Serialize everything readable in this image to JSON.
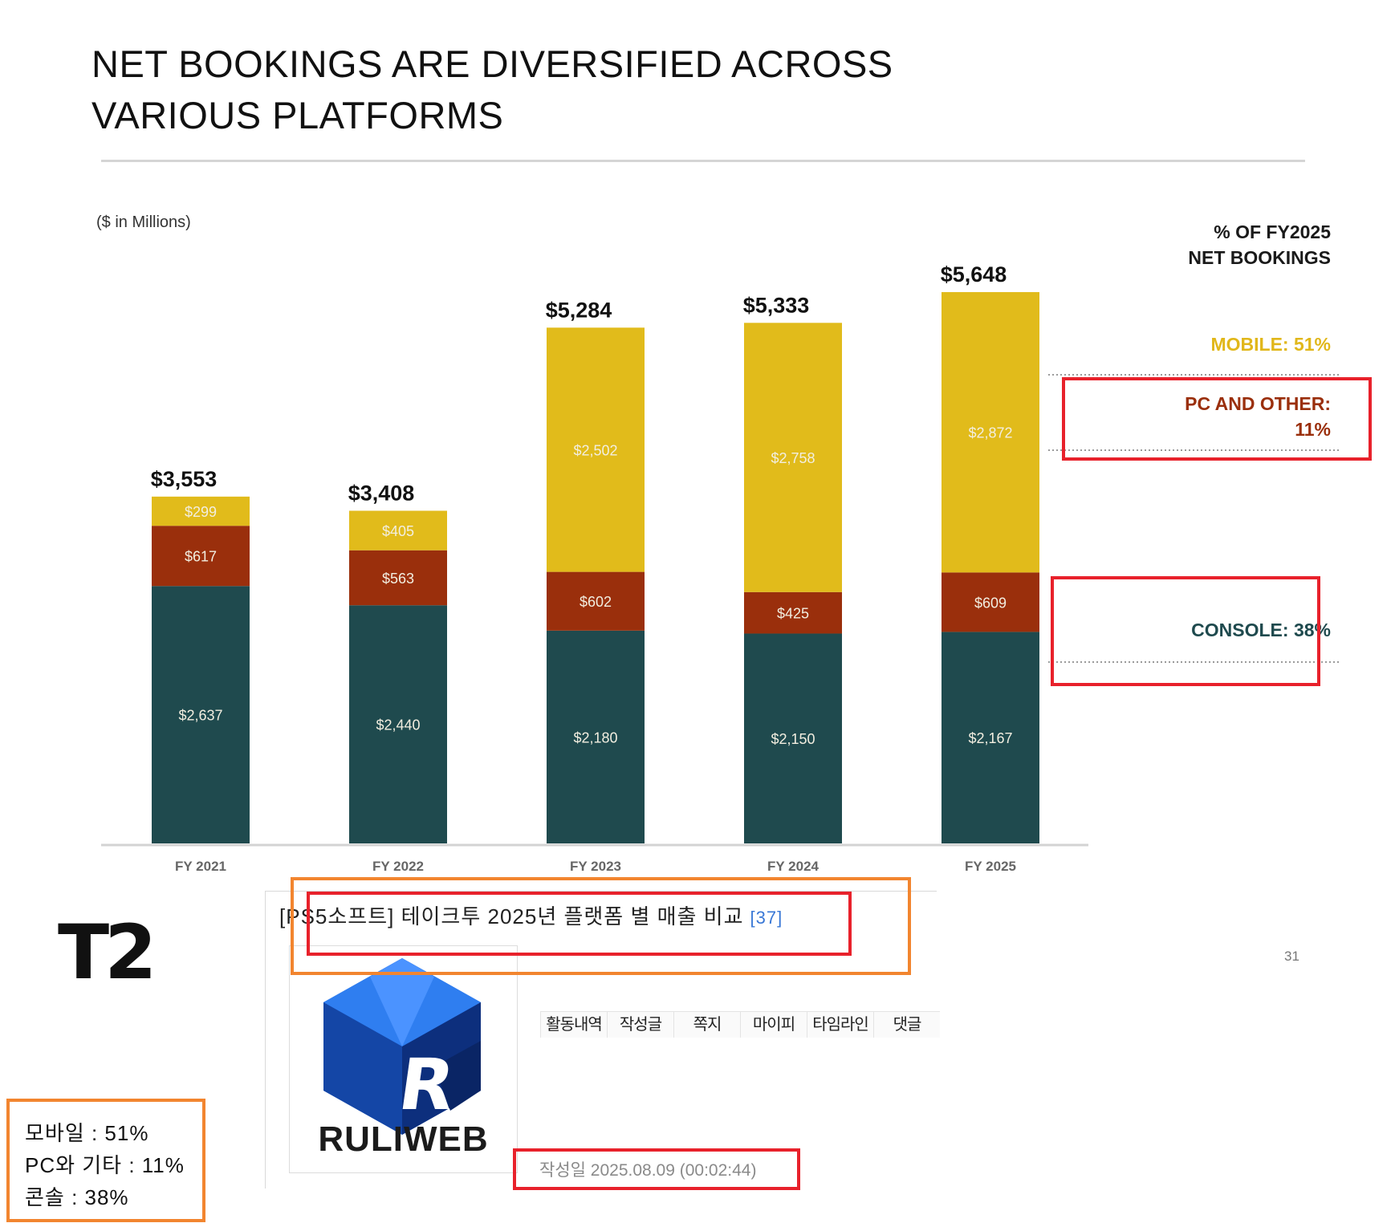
{
  "slide": {
    "title_line1": "NET BOOKINGS ARE DIVERSIFIED ACROSS",
    "title_line2": "VARIOUS PLATFORMS",
    "units_note": "($ in Millions)",
    "page_number": "31",
    "logo": "T2"
  },
  "legend": {
    "header_line1": "% OF FY2025",
    "header_line2": "NET BOOKINGS",
    "mobile": "MOBILE: 51%",
    "pc_line1": "PC AND OTHER:",
    "pc_line2": "11%",
    "console": "CONSOLE: 38%"
  },
  "chart_data": {
    "type": "bar",
    "stacked": true,
    "categories": [
      "FY 2021",
      "FY 2022",
      "FY 2023",
      "FY 2024",
      "FY 2025"
    ],
    "series": [
      {
        "name": "Console",
        "color": "#1f4a4e",
        "values": [
          2637,
          2440,
          2180,
          2150,
          2167
        ],
        "labels": [
          "$2,637",
          "$2,440",
          "$2,180",
          "$2,150",
          "$2,167"
        ]
      },
      {
        "name": "PC and Other",
        "color": "#9a2f0c",
        "values": [
          617,
          563,
          602,
          425,
          609
        ],
        "labels": [
          "$617",
          "$563",
          "$602",
          "$425",
          "$609"
        ]
      },
      {
        "name": "Mobile",
        "color": "#e1bb1b",
        "values": [
          299,
          405,
          2502,
          2758,
          2872
        ],
        "labels": [
          "$299",
          "$405",
          "$2,502",
          "$2,758",
          "$2,872"
        ]
      }
    ],
    "totals": [
      3553,
      3408,
      5284,
      5333,
      5648
    ],
    "total_labels": [
      "$3,553",
      "$3,408",
      "$5,284",
      "$5,333",
      "$5,648"
    ],
    "ylim": [
      0,
      5648
    ],
    "grid": false
  },
  "post": {
    "title": "[PS5소프트] 테이크투 2025년 플랫폼 별 매출 비교",
    "comment_count": "[37]",
    "site_logo": "RULIWEB",
    "menu": [
      "활동내역",
      "작성글",
      "쪽지",
      "마이피",
      "타임라인",
      "댓글"
    ],
    "date": "작성일 2025.08.09 (00:02:44)"
  },
  "summary": {
    "line1": "모바일 : 51%",
    "line2": "PC와 기타 : 11%",
    "line3": "콘솔 : 38%"
  },
  "colors": {
    "console": "#1f4a4e",
    "pc": "#9a2f0c",
    "mobile": "#e1bb1b",
    "highlight_red": "#e8212b",
    "highlight_orange": "#f2852f"
  }
}
